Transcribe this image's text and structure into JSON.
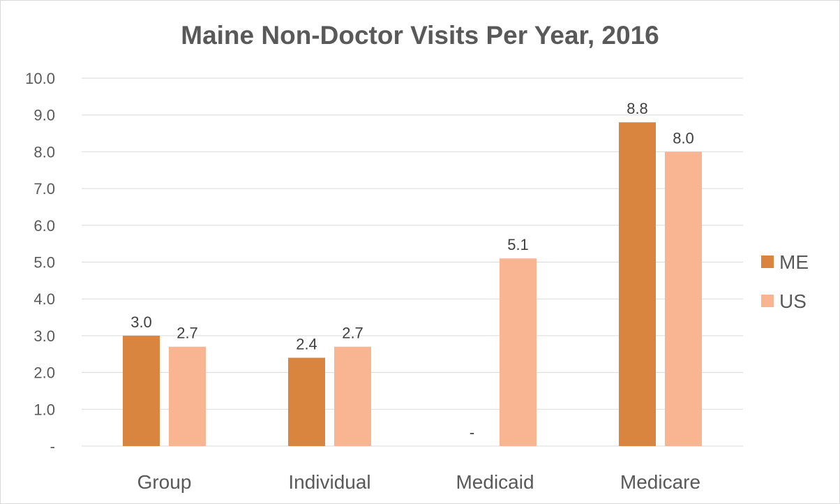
{
  "chart_data": {
    "type": "bar",
    "title": "Maine Non-Doctor Visits Per Year, 2016",
    "categories": [
      "Group",
      "Individual",
      "Medicaid",
      "Medicare"
    ],
    "series": [
      {
        "name": "ME",
        "color": "#d9843f",
        "values": [
          3.0,
          2.4,
          null,
          8.8
        ],
        "labels": [
          "3.0",
          "2.4",
          "-",
          "8.8"
        ]
      },
      {
        "name": "US",
        "color": "#f9b592",
        "values": [
          2.7,
          2.7,
          5.1,
          8.0
        ],
        "labels": [
          "2.7",
          "2.7",
          "5.1",
          "8.0"
        ]
      }
    ],
    "ylim": [
      0,
      10
    ],
    "yticks": [
      0,
      1,
      2,
      3,
      4,
      5,
      6,
      7,
      8,
      9,
      10
    ],
    "ytick_labels": [
      "-",
      "1.0",
      "2.0",
      "3.0",
      "4.0",
      "5.0",
      "6.0",
      "7.0",
      "8.0",
      "9.0",
      "10.0"
    ],
    "grid": true,
    "legend_position": "right"
  }
}
